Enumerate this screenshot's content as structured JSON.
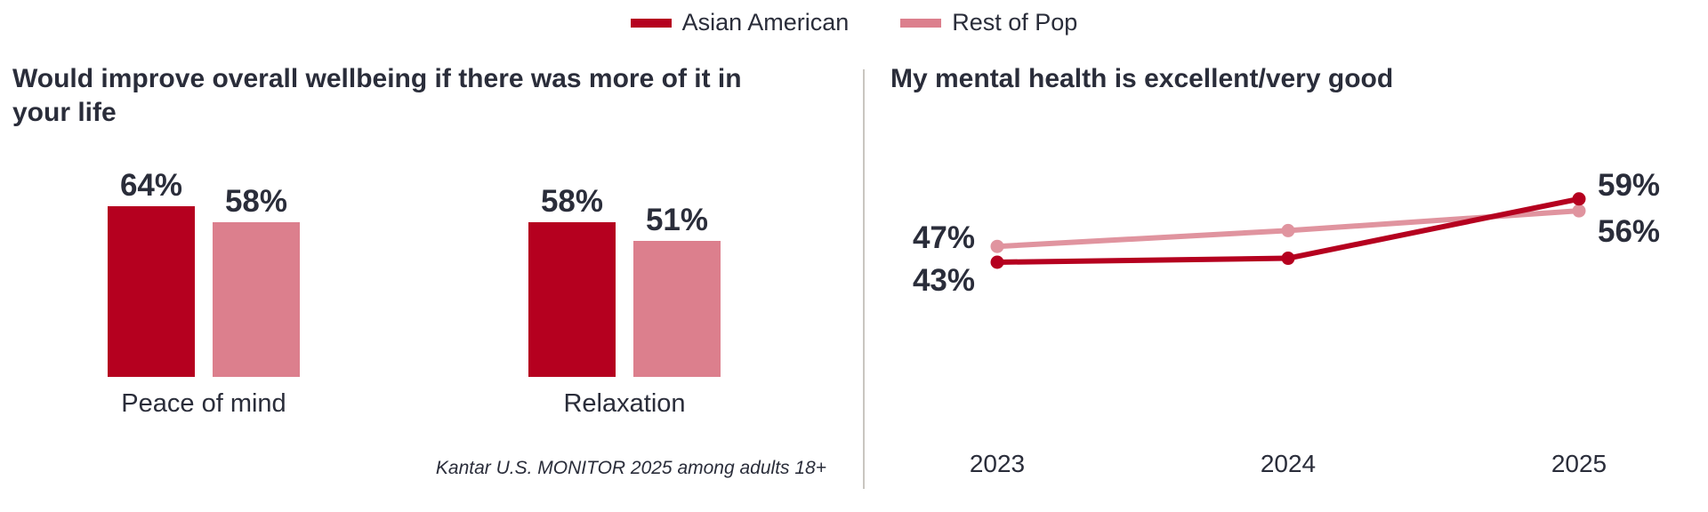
{
  "legend": [
    {
      "name": "Asian American",
      "color": "#b5001f"
    },
    {
      "name": "Rest of Pop",
      "color": "#dc7f8d"
    }
  ],
  "source": "Kantar U.S. MONITOR 2025 among adults 18+",
  "chart_data": [
    {
      "type": "bar",
      "title": "Would improve overall wellbeing if there was more of it in your life",
      "categories": [
        "Peace of mind",
        "Relaxation"
      ],
      "series": [
        {
          "name": "Asian American",
          "values": [
            64,
            58
          ],
          "labels": [
            "64%",
            "58%"
          ],
          "color": "#b5001f"
        },
        {
          "name": "Rest of Pop",
          "values": [
            58,
            51
          ],
          "labels": [
            "58%",
            "51%"
          ],
          "color": "#dc7f8d"
        }
      ],
      "grid": false,
      "legend_position": "top-center"
    },
    {
      "type": "line",
      "title": "My mental health is excellent/very good",
      "x": [
        "2023",
        "2024",
        "2025"
      ],
      "series": [
        {
          "name": "Asian American",
          "values": [
            43,
            44,
            59
          ],
          "labels": {
            "0": "43%",
            "2": "59%"
          },
          "color": "#b5001f"
        },
        {
          "name": "Rest of Pop",
          "values": [
            47,
            51,
            56
          ],
          "labels": {
            "0": "47%",
            "2": "56%"
          },
          "color": "#e0949f"
        }
      ],
      "grid": false,
      "legend_position": "top-center"
    }
  ]
}
